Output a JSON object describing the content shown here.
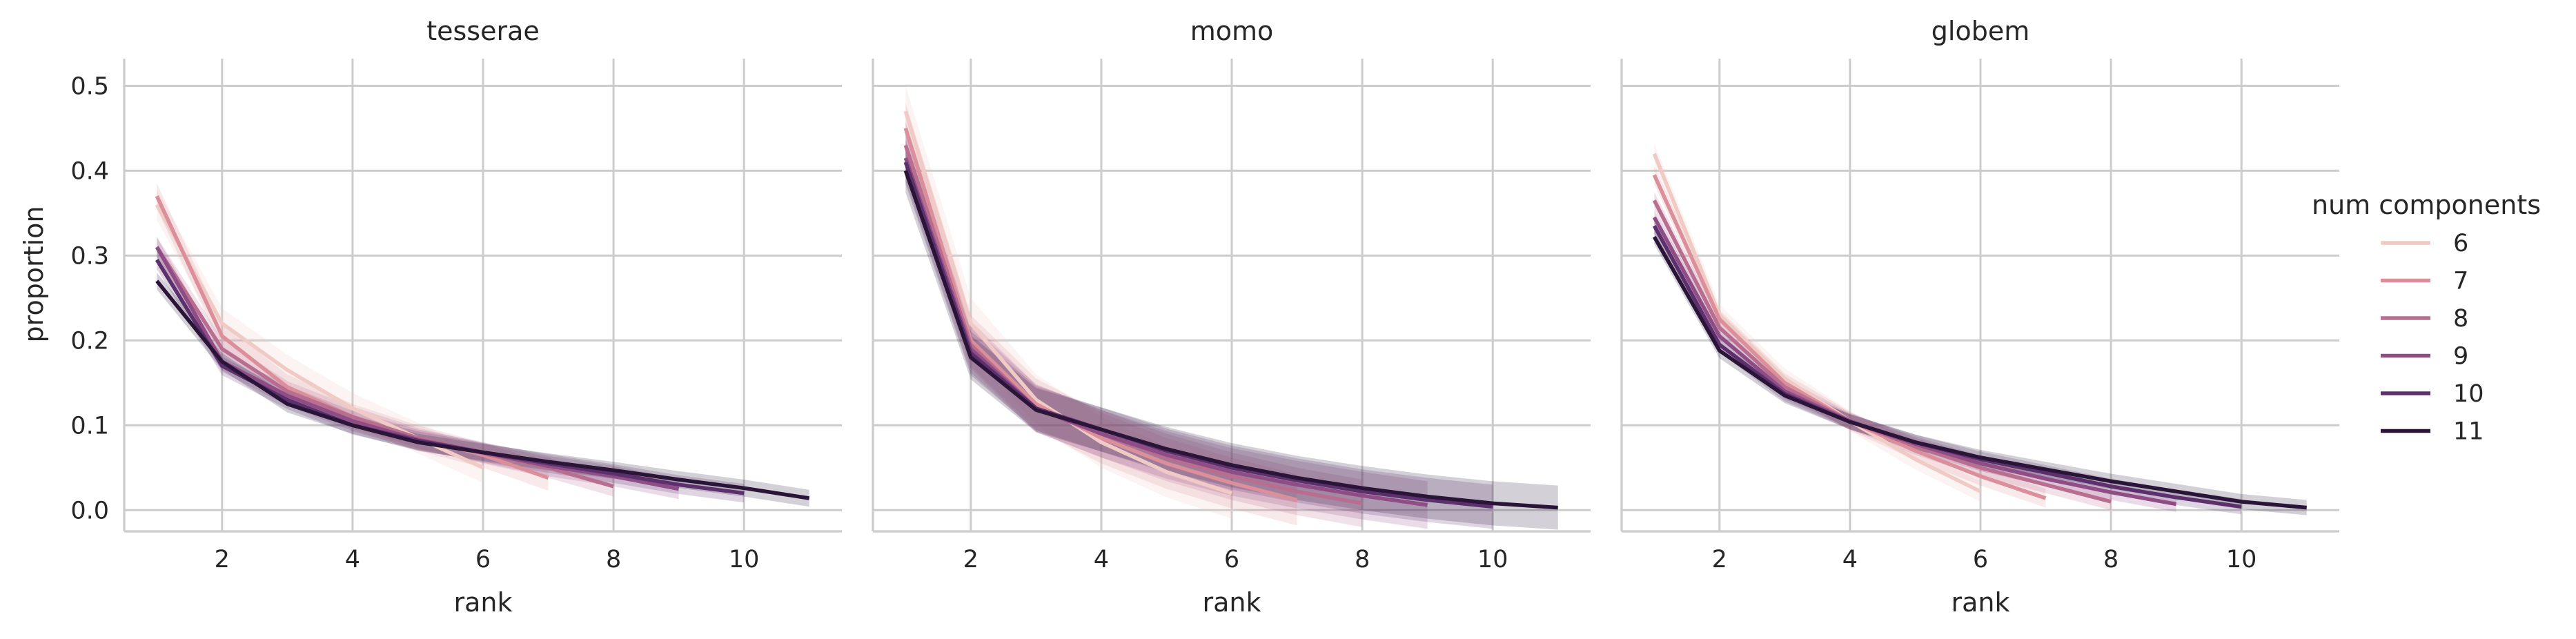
{
  "chart_data": {
    "type": "line",
    "ylabel": "proportion",
    "ylim": [
      -0.025,
      0.532
    ],
    "y_ticks": [
      "0.0",
      "0.1",
      "0.2",
      "0.3",
      "0.4",
      "0.5"
    ],
    "y_tick_values": [
      0.0,
      0.1,
      0.2,
      0.3,
      0.4,
      0.5
    ],
    "grid": true,
    "confidence_bands": true,
    "legend": {
      "title": "num components",
      "placement": "right",
      "entries": [
        {
          "label": "6",
          "color": "#f0cac4"
        },
        {
          "label": "7",
          "color": "#db8f9a"
        },
        {
          "label": "8",
          "color": "#b86e8f"
        },
        {
          "label": "9",
          "color": "#8f4d86"
        },
        {
          "label": "10",
          "color": "#5c2f6d"
        },
        {
          "label": "11",
          "color": "#2a1538"
        }
      ]
    },
    "panels": [
      {
        "title": "tesserae",
        "xlabel": "rank",
        "xlim": [
          0.5,
          11.5
        ],
        "x_ticks": [
          "2",
          "4",
          "6",
          "8",
          "10"
        ],
        "x_tick_values": [
          2,
          4,
          6,
          8,
          10
        ],
        "series": [
          {
            "name": "6",
            "color": "#f0cac4",
            "x": [
              1,
              2,
              3,
              4,
              5,
              6
            ],
            "y": [
              0.36,
              0.22,
              0.165,
              0.12,
              0.085,
              0.05
            ],
            "band": 0.018
          },
          {
            "name": "7",
            "color": "#db8f9a",
            "x": [
              1,
              2,
              3,
              4,
              5,
              6,
              7
            ],
            "y": [
              0.37,
              0.205,
              0.145,
              0.11,
              0.085,
              0.065,
              0.038
            ],
            "band": 0.015
          },
          {
            "name": "8",
            "color": "#b86e8f",
            "x": [
              1,
              2,
              3,
              4,
              5,
              6,
              7,
              8
            ],
            "y": [
              0.31,
              0.19,
              0.14,
              0.11,
              0.085,
              0.067,
              0.05,
              0.028
            ],
            "band": 0.012
          },
          {
            "name": "9",
            "color": "#8f4d86",
            "x": [
              1,
              2,
              3,
              4,
              5,
              6,
              7,
              8,
              9
            ],
            "y": [
              0.31,
              0.175,
              0.135,
              0.105,
              0.083,
              0.068,
              0.052,
              0.04,
              0.025
            ],
            "band": 0.012
          },
          {
            "name": "10",
            "color": "#5c2f6d",
            "x": [
              1,
              2,
              3,
              4,
              5,
              6,
              7,
              8,
              9,
              10
            ],
            "y": [
              0.295,
              0.17,
              0.13,
              0.1,
              0.082,
              0.068,
              0.055,
              0.043,
              0.03,
              0.02
            ],
            "band": 0.011
          },
          {
            "name": "11",
            "color": "#2a1538",
            "x": [
              1,
              2,
              3,
              4,
              5,
              6,
              7,
              8,
              9,
              10,
              11
            ],
            "y": [
              0.27,
              0.175,
              0.125,
              0.1,
              0.08,
              0.068,
              0.057,
              0.047,
              0.036,
              0.026,
              0.014
            ],
            "band": 0.01
          }
        ]
      },
      {
        "title": "momo",
        "xlabel": "rank",
        "xlim": [
          0.5,
          11.5
        ],
        "x_ticks": [
          "2",
          "4",
          "6",
          "8",
          "10"
        ],
        "x_tick_values": [
          2,
          4,
          6,
          8,
          10
        ],
        "series": [
          {
            "name": "6",
            "color": "#f0cac4",
            "x": [
              1,
              2,
              3,
              4,
              5,
              6
            ],
            "y": [
              0.47,
              0.22,
              0.13,
              0.08,
              0.045,
              0.02
            ],
            "band": 0.03
          },
          {
            "name": "7",
            "color": "#db8f9a",
            "x": [
              1,
              2,
              3,
              4,
              5,
              6,
              7
            ],
            "y": [
              0.45,
              0.2,
              0.125,
              0.085,
              0.055,
              0.032,
              0.012
            ],
            "band": 0.03
          },
          {
            "name": "8",
            "color": "#b86e8f",
            "x": [
              1,
              2,
              3,
              4,
              5,
              6,
              7,
              8
            ],
            "y": [
              0.43,
              0.195,
              0.12,
              0.09,
              0.062,
              0.04,
              0.022,
              0.008
            ],
            "band": 0.028
          },
          {
            "name": "9",
            "color": "#8f4d86",
            "x": [
              1,
              2,
              3,
              4,
              5,
              6,
              7,
              8,
              9
            ],
            "y": [
              0.415,
              0.19,
              0.12,
              0.09,
              0.065,
              0.045,
              0.03,
              0.017,
              0.006
            ],
            "band": 0.028
          },
          {
            "name": "10",
            "color": "#5c2f6d",
            "x": [
              1,
              2,
              3,
              4,
              5,
              6,
              7,
              8,
              9,
              10
            ],
            "y": [
              0.41,
              0.185,
              0.12,
              0.095,
              0.07,
              0.05,
              0.035,
              0.022,
              0.012,
              0.004
            ],
            "band": 0.026
          },
          {
            "name": "11",
            "color": "#2a1538",
            "x": [
              1,
              2,
              3,
              4,
              5,
              6,
              7,
              8,
              9,
              10,
              11
            ],
            "y": [
              0.4,
              0.18,
              0.118,
              0.095,
              0.072,
              0.053,
              0.038,
              0.026,
              0.016,
              0.008,
              0.003
            ],
            "band": 0.026
          }
        ]
      },
      {
        "title": "globem",
        "xlabel": "rank",
        "xlim": [
          0.5,
          11.5
        ],
        "x_ticks": [
          "2",
          "4",
          "6",
          "8",
          "10"
        ],
        "x_tick_values": [
          2,
          4,
          6,
          8,
          10
        ],
        "series": [
          {
            "name": "6",
            "color": "#f0cac4",
            "x": [
              1,
              2,
              3,
              4,
              5,
              6
            ],
            "y": [
              0.42,
              0.23,
              0.155,
              0.105,
              0.06,
              0.022
            ],
            "band": 0.012
          },
          {
            "name": "7",
            "color": "#db8f9a",
            "x": [
              1,
              2,
              3,
              4,
              5,
              6,
              7
            ],
            "y": [
              0.395,
              0.225,
              0.15,
              0.105,
              0.07,
              0.04,
              0.014
            ],
            "band": 0.011
          },
          {
            "name": "8",
            "color": "#b86e8f",
            "x": [
              1,
              2,
              3,
              4,
              5,
              6,
              7,
              8
            ],
            "y": [
              0.365,
              0.215,
              0.145,
              0.105,
              0.075,
              0.05,
              0.03,
              0.01
            ],
            "band": 0.01
          },
          {
            "name": "9",
            "color": "#8f4d86",
            "x": [
              1,
              2,
              3,
              4,
              5,
              6,
              7,
              8,
              9
            ],
            "y": [
              0.345,
              0.205,
              0.14,
              0.105,
              0.078,
              0.055,
              0.037,
              0.021,
              0.007
            ],
            "band": 0.009
          },
          {
            "name": "10",
            "color": "#5c2f6d",
            "x": [
              1,
              2,
              3,
              4,
              5,
              6,
              7,
              8,
              9,
              10
            ],
            "y": [
              0.335,
              0.195,
              0.137,
              0.104,
              0.08,
              0.06,
              0.044,
              0.028,
              0.015,
              0.004
            ],
            "band": 0.009
          },
          {
            "name": "11",
            "color": "#2a1538",
            "x": [
              1,
              2,
              3,
              4,
              5,
              6,
              7,
              8,
              9,
              10,
              11
            ],
            "y": [
              0.322,
              0.188,
              0.135,
              0.104,
              0.08,
              0.062,
              0.048,
              0.034,
              0.022,
              0.01,
              0.003
            ],
            "band": 0.009
          }
        ]
      }
    ]
  }
}
